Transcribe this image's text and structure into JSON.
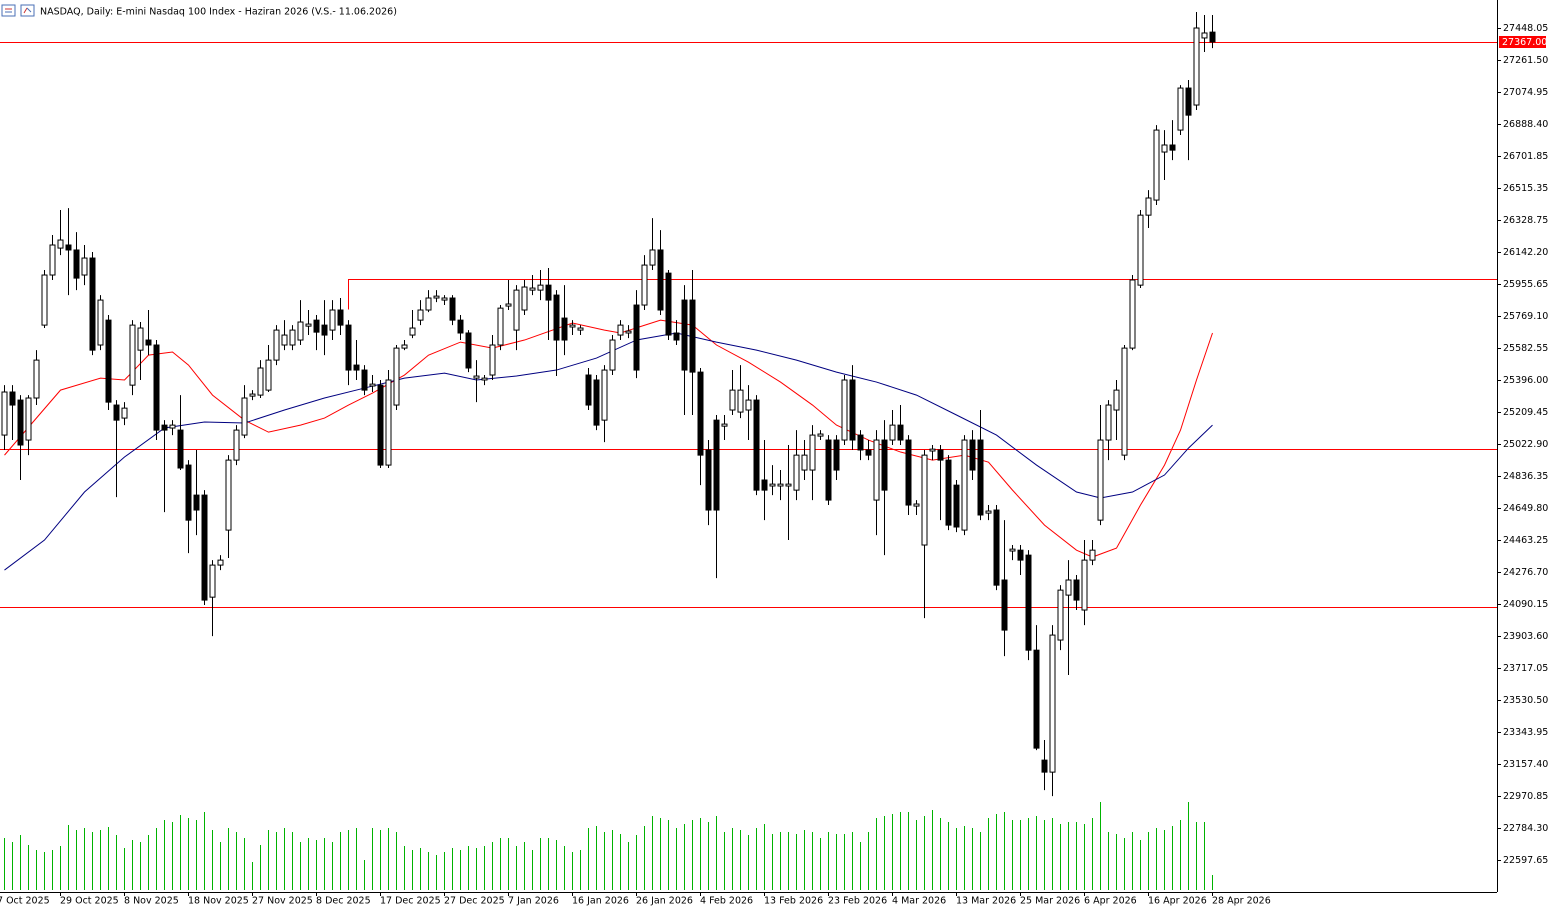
{
  "chart_data": {
    "type": "candlestick",
    "title": "NASDAQ, Daily:  E-mini Nasdaq 100 Index -  Haziran 2026 (V.S.- 11.06.2026)",
    "first_date_label": "7 Oct 2025",
    "categories": [
      null,
      null,
      null,
      null,
      null,
      null,
      null,
      "29 Oct 2025",
      null,
      null,
      null,
      null,
      null,
      null,
      null,
      "8 Nov 2025",
      null,
      null,
      null,
      null,
      null,
      null,
      null,
      "18 Nov 2025",
      null,
      null,
      null,
      null,
      null,
      null,
      null,
      "27 Nov 2025",
      null,
      null,
      null,
      null,
      null,
      null,
      null,
      "8 Dec 2025",
      null,
      null,
      null,
      null,
      null,
      null,
      null,
      "17 Dec 2025",
      null,
      null,
      null,
      null,
      null,
      null,
      null,
      "27 Dec 2025",
      null,
      null,
      null,
      null,
      null,
      null,
      null,
      "7 Jan 2026",
      null,
      null,
      null,
      null,
      null,
      null,
      null,
      "16 Jan 2026",
      null,
      null,
      null,
      null,
      null,
      null,
      null,
      "26 Jan 2026",
      null,
      null,
      null,
      null,
      null,
      null,
      null,
      "4 Feb 2026",
      null,
      null,
      null,
      null,
      null,
      null,
      null,
      "13 Feb 2026",
      null,
      null,
      null,
      null,
      null,
      null,
      null,
      "23 Feb 2026",
      null,
      null,
      null,
      null,
      null,
      null,
      null,
      "4 Mar 2026",
      null,
      null,
      null,
      null,
      null,
      null,
      null,
      "13 Mar 2026",
      null,
      null,
      null,
      null,
      null,
      null,
      null,
      "25 Mar 2026",
      null,
      null,
      null,
      null,
      null,
      null,
      null,
      "6 Apr 2026",
      null,
      null,
      null,
      null,
      null,
      null,
      null,
      "16 Apr 2026",
      null,
      null,
      null,
      null,
      null,
      null,
      null,
      "28 Apr 2026"
    ],
    "ohlc": [
      [
        25075,
        25366,
        24988,
        25326
      ],
      [
        25326,
        25366,
        25046,
        25250
      ],
      [
        25279,
        25308,
        24813,
        25017
      ],
      [
        25046,
        25308,
        24958,
        25291
      ],
      [
        25291,
        25570,
        25250,
        25512
      ],
      [
        25716,
        26037,
        25699,
        26008
      ],
      [
        26008,
        26241,
        25979,
        26183
      ],
      [
        26165,
        26387,
        26124,
        26212
      ],
      [
        26183,
        26398,
        25891,
        26154
      ],
      [
        26154,
        26258,
        25920,
        25990
      ],
      [
        26008,
        26183,
        25949,
        26107
      ],
      [
        26107,
        26142,
        25541,
        25570
      ],
      [
        25600,
        25891,
        25570,
        25862
      ],
      [
        25745,
        25775,
        25221,
        25267
      ],
      [
        25250,
        25279,
        24713,
        25162
      ],
      [
        25174,
        25267,
        25133,
        25232
      ],
      [
        25366,
        25745,
        25308,
        25716
      ],
      [
        25570,
        25734,
        25396,
        25699
      ],
      [
        25629,
        25804,
        25541,
        25600
      ],
      [
        25600,
        25629,
        25046,
        25104
      ],
      [
        25133,
        25162,
        24626,
        25104
      ],
      [
        25116,
        25162,
        25075,
        25133
      ],
      [
        25104,
        25308,
        24871,
        24883
      ],
      [
        24900,
        24929,
        24387,
        24579
      ],
      [
        24725,
        24988,
        24492,
        24638
      ],
      [
        24725,
        24754,
        24084,
        24113
      ],
      [
        24130,
        24346,
        23903,
        24317
      ],
      [
        24317,
        24375,
        24288,
        24346
      ],
      [
        24521,
        24958,
        24358,
        24929
      ],
      [
        24929,
        25133,
        24900,
        25104
      ],
      [
        25075,
        25366,
        25057,
        25291
      ],
      [
        25302,
        25337,
        25279,
        25314
      ],
      [
        25308,
        25512,
        25291,
        25466
      ],
      [
        25337,
        25600,
        25326,
        25512
      ],
      [
        25512,
        25716,
        25483,
        25687
      ],
      [
        25600,
        25745,
        25570,
        25658
      ],
      [
        25600,
        25716,
        25570,
        25687
      ],
      [
        25629,
        25862,
        25600,
        25734
      ],
      [
        25710,
        25804,
        25658,
        25722
      ],
      [
        25745,
        25775,
        25570,
        25675
      ],
      [
        25716,
        25862,
        25541,
        25658
      ],
      [
        25687,
        25862,
        25629,
        25804
      ],
      [
        25804,
        25874,
        25658,
        25716
      ],
      [
        25716,
        25745,
        25366,
        25454
      ],
      [
        25483,
        25629,
        25396,
        25454
      ],
      [
        25454,
        25483,
        25308,
        25337
      ],
      [
        25361,
        25425,
        25326,
        25372
      ],
      [
        25366,
        25396,
        24883,
        24900
      ],
      [
        24900,
        25454,
        24883,
        25396
      ],
      [
        25250,
        25600,
        25221,
        25582
      ],
      [
        25582,
        25629,
        25570,
        25600
      ],
      [
        25658,
        25804,
        25640,
        25699
      ],
      [
        25745,
        25862,
        25716,
        25804
      ],
      [
        25804,
        25920,
        25792,
        25874
      ],
      [
        25874,
        25920,
        25850,
        25885
      ],
      [
        25862,
        25891,
        25833,
        25874
      ],
      [
        25874,
        25891,
        25716,
        25745
      ],
      [
        25745,
        25775,
        25629,
        25670
      ],
      [
        25670,
        25687,
        25442,
        25466
      ],
      [
        25407,
        25512,
        25267,
        25419
      ],
      [
        25396,
        25425,
        25366,
        25407
      ],
      [
        25425,
        25658,
        25396,
        25600
      ],
      [
        25600,
        25833,
        25570,
        25815
      ],
      [
        25827,
        25979,
        25804,
        25839
      ],
      [
        25687,
        25949,
        25570,
        25920
      ],
      [
        25804,
        25979,
        25775,
        25938
      ],
      [
        25920,
        26008,
        25891,
        25932
      ],
      [
        25920,
        26037,
        25862,
        25949
      ],
      [
        25949,
        26049,
        25629,
        25862
      ],
      [
        25891,
        25920,
        25419,
        25629
      ],
      [
        25757,
        25949,
        25541,
        25629
      ],
      [
        25705,
        25745,
        25658,
        25716
      ],
      [
        25687,
        25716,
        25658,
        25699
      ],
      [
        25425,
        25466,
        25221,
        25250
      ],
      [
        25396,
        25425,
        25104,
        25133
      ],
      [
        25162,
        25483,
        25034,
        25454
      ],
      [
        25454,
        25658,
        25425,
        25629
      ],
      [
        25658,
        25745,
        25629,
        25716
      ],
      [
        25670,
        25716,
        25640,
        25681
      ],
      [
        25833,
        25920,
        25407,
        25454
      ],
      [
        25833,
        26124,
        25804,
        26066
      ],
      [
        26066,
        26340,
        26037,
        26154
      ],
      [
        26154,
        26270,
        25775,
        25804
      ],
      [
        26019,
        26037,
        25629,
        25658
      ],
      [
        25670,
        25745,
        25600,
        25629
      ],
      [
        25862,
        25949,
        25192,
        25454
      ],
      [
        25862,
        26037,
        25192,
        25442
      ],
      [
        25442,
        25466,
        24783,
        24958
      ],
      [
        24988,
        25046,
        24550,
        24638
      ],
      [
        25162,
        25192,
        24241,
        24638
      ],
      [
        25127,
        25192,
        25046,
        25139
      ],
      [
        25221,
        25454,
        25192,
        25337
      ],
      [
        25209,
        25483,
        25174,
        25337
      ],
      [
        25221,
        25366,
        25046,
        25279
      ],
      [
        25279,
        25308,
        24725,
        24754
      ],
      [
        24813,
        25046,
        24579,
        24754
      ],
      [
        24778,
        24900,
        24725,
        24789
      ],
      [
        24778,
        24871,
        24696,
        24789
      ],
      [
        24778,
        25017,
        24463,
        24789
      ],
      [
        24754,
        25104,
        24696,
        24958
      ],
      [
        24871,
        25046,
        24813,
        24958
      ],
      [
        24871,
        25133,
        24696,
        25075
      ],
      [
        25069,
        25104,
        25046,
        25081
      ],
      [
        25046,
        25075,
        24667,
        24696
      ],
      [
        25046,
        25075,
        24813,
        24871
      ],
      [
        25046,
        25425,
        25017,
        25396
      ],
      [
        25396,
        25483,
        24988,
        25046
      ],
      [
        25075,
        25104,
        24929,
        24988
      ],
      [
        24988,
        25046,
        24929,
        24958
      ],
      [
        24696,
        25104,
        24492,
        25046
      ],
      [
        25046,
        25162,
        24375,
        24754
      ],
      [
        25046,
        25221,
        25017,
        25133
      ],
      [
        25133,
        25250,
        25017,
        25046
      ],
      [
        25046,
        25075,
        24609,
        24667
      ],
      [
        24661,
        24696,
        24609,
        24673
      ],
      [
        24434,
        24988,
        24008,
        24958
      ],
      [
        24982,
        25017,
        24929,
        24993
      ],
      [
        24988,
        25017,
        24579,
        24929
      ],
      [
        24929,
        24958,
        24521,
        24550
      ],
      [
        24783,
        24813,
        24509,
        24539
      ],
      [
        24521,
        25075,
        24492,
        25046
      ],
      [
        25046,
        25104,
        24813,
        24871
      ],
      [
        25046,
        25221,
        24579,
        24609
      ],
      [
        24620,
        24667,
        24579,
        24632
      ],
      [
        24638,
        24667,
        24171,
        24200
      ],
      [
        24230,
        24579,
        23786,
        23938
      ],
      [
        24399,
        24434,
        24346,
        24410
      ],
      [
        24404,
        24434,
        24259,
        24346
      ],
      [
        24375,
        24404,
        23763,
        23821
      ],
      [
        23821,
        23967,
        23238,
        23250
      ],
      [
        23180,
        23297,
        23005,
        23110
      ],
      [
        23110,
        23967,
        22970,
        23909
      ],
      [
        23880,
        24200,
        23821,
        24171
      ],
      [
        24142,
        24346,
        23676,
        24230
      ],
      [
        24230,
        24259,
        24055,
        24113
      ],
      [
        24055,
        24463,
        23967,
        24346
      ],
      [
        24346,
        24463,
        24317,
        24404
      ],
      [
        24579,
        25250,
        24550,
        25046
      ],
      [
        25046,
        25279,
        24929,
        25250
      ],
      [
        25221,
        25396,
        25046,
        25337
      ],
      [
        24958,
        25600,
        24929,
        25582
      ],
      [
        25582,
        26008,
        25570,
        25979
      ],
      [
        25949,
        26387,
        25932,
        26357
      ],
      [
        26357,
        26503,
        26282,
        26457
      ],
      [
        26445,
        26882,
        26416,
        26853
      ],
      [
        26725,
        26853,
        26562,
        26766
      ],
      [
        26766,
        26911,
        26678,
        26736
      ],
      [
        26853,
        27115,
        26824,
        27098
      ],
      [
        27098,
        27145,
        26678,
        26940
      ],
      [
        26999,
        27541,
        26970,
        27448
      ],
      [
        27390,
        27524,
        27308,
        27419
      ],
      [
        27424,
        27524,
        27331,
        27367
      ]
    ],
    "candle_colors": {
      "up": "#ffffff",
      "down": "#000000",
      "outline": "#000000"
    },
    "volume": [
      52,
      48,
      55,
      45,
      40,
      38,
      40,
      44,
      65,
      60,
      62,
      58,
      60,
      63,
      55,
      42,
      50,
      48,
      55,
      62,
      70,
      68,
      75,
      72,
      70,
      78,
      60,
      48,
      62,
      58,
      52,
      28,
      45,
      60,
      58,
      62,
      58,
      48,
      52,
      50,
      52,
      48,
      58,
      60,
      62,
      30,
      62,
      60,
      62,
      58,
      44,
      40,
      42,
      38,
      35,
      38,
      42,
      40,
      44,
      42,
      44,
      48,
      52,
      52,
      44,
      48,
      40,
      52,
      52,
      50,
      44,
      38,
      40,
      62,
      64,
      58,
      60,
      56,
      48,
      55,
      64,
      74,
      72,
      70,
      62,
      66,
      70,
      72,
      68,
      74,
      58,
      62,
      60,
      55,
      62,
      66,
      56,
      58,
      58,
      56,
      60,
      58,
      52,
      58,
      56,
      56,
      58,
      48,
      58,
      72,
      74,
      76,
      78,
      78,
      70,
      74,
      80,
      72,
      68,
      62,
      64,
      62,
      58,
      72,
      76,
      78,
      70,
      70,
      72,
      74,
      70,
      72,
      66,
      68,
      68,
      66,
      72,
      88,
      58,
      56,
      52,
      58,
      50,
      58,
      62,
      60,
      64,
      70,
      88,
      68,
      68,
      15
    ],
    "volume_color": "#00b300",
    "lines": [
      {
        "color": "#ff0000",
        "x": [
          0,
          7,
          12,
          15,
          18,
          21,
          23,
          26,
          30,
          33,
          37,
          40,
          43,
          46,
          50,
          53,
          57,
          61,
          65,
          71,
          75,
          77,
          82,
          86,
          89,
          93,
          97,
          101,
          104,
          108,
          112,
          116,
          120,
          123,
          126,
          130,
          134,
          136,
          139,
          142,
          145,
          147,
          149,
          151
        ],
        "values": [
          24958,
          25337,
          25407,
          25396,
          25541,
          25559,
          25483,
          25308,
          25162,
          25092,
          25133,
          25174,
          25250,
          25320,
          25425,
          25541,
          25617,
          25582,
          25629,
          25728,
          25687,
          25670,
          25745,
          25716,
          25600,
          25500,
          25384,
          25250,
          25133,
          25046,
          24976,
          24929,
          24958,
          24917,
          24754,
          24550,
          24404,
          24364,
          24416,
          24667,
          24900,
          25104,
          25396,
          25670
        ]
      },
      {
        "color": "#000080",
        "x": [
          0,
          5,
          10,
          15,
          20,
          25,
          30,
          35,
          40,
          45,
          50,
          55,
          59,
          64,
          69,
          74,
          79,
          84,
          89,
          94,
          99,
          104,
          109,
          114,
          119,
          124,
          129,
          134,
          137,
          141,
          145,
          148,
          151
        ],
        "values": [
          24288,
          24463,
          24743,
          24947,
          25116,
          25151,
          25145,
          25221,
          25291,
          25349,
          25407,
          25436,
          25396,
          25419,
          25454,
          25524,
          25629,
          25670,
          25617,
          25570,
          25512,
          25442,
          25384,
          25308,
          25192,
          25075,
          24900,
          24743,
          24708,
          24743,
          24842,
          24999,
          25133
        ]
      }
    ],
    "levels": [
      {
        "value": 27367,
        "label": "27367.00"
      },
      25984,
      24993,
      24072
    ],
    "level_color": "#ff0000",
    "ylim": [
      22411.2,
      27611.3
    ],
    "yticks": [
      27448.05,
      {
        "value": 27261.5,
        "label": "27261.50"
      },
      27074.95,
      {
        "value": 26888.4,
        "label": "26888.40"
      },
      26701.85,
      26515.35,
      26328.75,
      {
        "value": 26142.2,
        "label": "26142.20"
      },
      25955.65,
      {
        "value": 25769.1,
        "label": "25769.10"
      },
      25582.55,
      {
        "value": 25396,
        "label": "25396.00"
      },
      25209.45,
      {
        "value": 25022.9,
        "label": "25022.90"
      },
      24836.35,
      {
        "value": 24649.8,
        "label": "24649.80"
      },
      24463.25,
      {
        "value": 24276.7,
        "label": "24276.70"
      },
      24090.15,
      {
        "value": 23903.6,
        "label": "23903.60"
      },
      23717.05,
      {
        "value": 23530.5,
        "label": "23530.50"
      },
      23343.95,
      {
        "value": 23157.4,
        "label": "23157.40"
      },
      22970.85,
      {
        "value": 22784.3,
        "label": "22784.30"
      },
      22597.65
    ],
    "grid": false
  }
}
